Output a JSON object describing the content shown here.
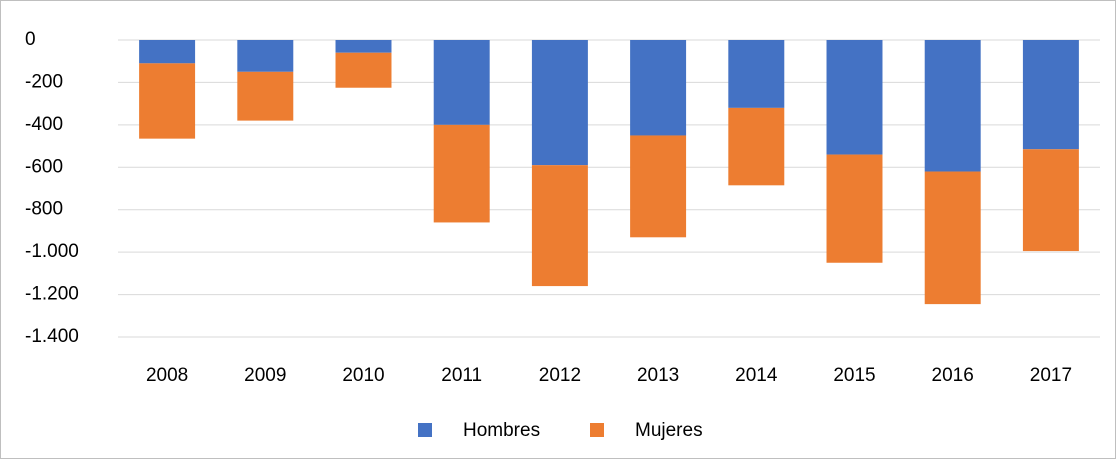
{
  "chart_data": {
    "type": "stacked_bar",
    "categories": [
      "2008",
      "2009",
      "2010",
      "2011",
      "2012",
      "2013",
      "2014",
      "2015",
      "2016",
      "2017"
    ],
    "series": [
      {
        "name": "Hombres",
        "color": "#4472c4",
        "values": [
          -110,
          -150,
          -60,
          -400,
          -590,
          -450,
          -320,
          -540,
          -620,
          -515
        ]
      },
      {
        "name": "Mujeres",
        "color": "#ed7d31",
        "values": [
          -355,
          -230,
          -165,
          -460,
          -570,
          -480,
          -365,
          -510,
          -625,
          -480
        ]
      }
    ],
    "ylim": [
      -1400,
      0
    ],
    "yticks": [
      0,
      -200,
      -400,
      -600,
      -800,
      {
        "value": -1000,
        "label": "-1.000"
      },
      {
        "value": -1200,
        "label": "-1.200"
      },
      {
        "value": -1400,
        "label": "-1.400"
      }
    ],
    "grid": true,
    "legend": "bottom"
  }
}
